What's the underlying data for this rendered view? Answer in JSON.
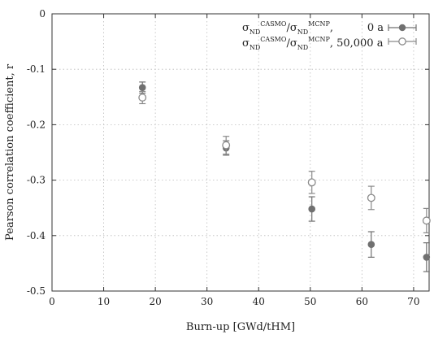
{
  "chart_data": {
    "type": "scatter",
    "xlabel": "Burn-up  [GWd/tHM]",
    "ylabel": "Pearson correlation coefficient, r",
    "xlim": [
      0,
      73
    ],
    "ylim": [
      -0.5,
      0
    ],
    "xticks": [
      0,
      10,
      20,
      30,
      40,
      50,
      60,
      70
    ],
    "yticks": [
      0,
      -0.1,
      -0.2,
      -0.3,
      -0.4,
      -0.5
    ],
    "xtick_labels": [
      "0",
      "10",
      "20",
      "30",
      "40",
      "50",
      "60",
      "70"
    ],
    "ytick_labels": [
      "0",
      "-0.1",
      "-0.2",
      "-0.3",
      "-0.4",
      "-0.5"
    ],
    "grid": true,
    "legend_position": "top-right",
    "series": [
      {
        "name": "0 a",
        "marker": "filled-circle",
        "color": "#707070",
        "points": [
          {
            "x": 17.5,
            "y": -0.133,
            "err": 0.01
          },
          {
            "x": 33.7,
            "y": -0.242,
            "err": 0.013
          },
          {
            "x": 50.3,
            "y": -0.352,
            "err": 0.022
          },
          {
            "x": 61.8,
            "y": -0.416,
            "err": 0.023
          },
          {
            "x": 72.5,
            "y": -0.439,
            "err": 0.026
          }
        ]
      },
      {
        "name": "50,000 a",
        "marker": "open-circle",
        "color": "#8a8a8a",
        "points": [
          {
            "x": 17.5,
            "y": -0.151,
            "err": 0.011
          },
          {
            "x": 33.7,
            "y": -0.237,
            "err": 0.016
          },
          {
            "x": 50.3,
            "y": -0.304,
            "err": 0.02
          },
          {
            "x": 61.8,
            "y": -0.332,
            "err": 0.021
          },
          {
            "x": 72.5,
            "y": -0.373,
            "err": 0.022
          }
        ]
      }
    ]
  },
  "legend": {
    "entries": [
      {
        "symbol": "σ",
        "sub1": "ND",
        "sup": "CASMO",
        "slash": "/",
        "symbol2": "σ",
        "sub2": "ND",
        "sup2": "MCNP",
        "suffix": ",",
        "label": "0 a"
      },
      {
        "symbol": "σ",
        "sub1": "ND",
        "sup": "CASMO",
        "slash": "/",
        "symbol2": "σ",
        "sub2": "ND",
        "sup2": "MCNP",
        "suffix": ", 50,000 a",
        "label": ""
      }
    ]
  }
}
